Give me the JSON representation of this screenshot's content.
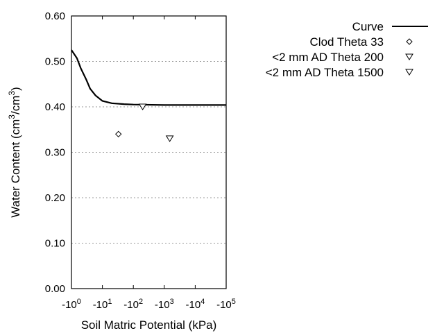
{
  "chart_data": {
    "type": "scatter",
    "title": "",
    "xlabel": "Soil Matric Potential (kPa)",
    "ylabel": "Water Content (cm3/cm3)",
    "xscale": "log (negative)",
    "xlim": [
      1,
      100000
    ],
    "ylim": [
      0.0,
      0.6
    ],
    "x_ticks": [
      "-10^0",
      "-10^1",
      "-10^2",
      "-10^3",
      "-10^4",
      "-10^5"
    ],
    "y_ticks": [
      "0.00",
      "0.10",
      "0.20",
      "0.30",
      "0.40",
      "0.50",
      "0.60"
    ],
    "grid": "horizontal dotted",
    "legend_position": "right, outside plot",
    "series": [
      {
        "name": "Curve",
        "type": "line",
        "x": [
          1,
          1.5,
          2,
          3,
          4,
          6,
          10,
          20,
          50,
          100,
          1000,
          100000
        ],
        "y": [
          0.525,
          0.507,
          0.485,
          0.46,
          0.44,
          0.425,
          0.413,
          0.408,
          0.406,
          0.405,
          0.404,
          0.404
        ]
      },
      {
        "name": "Clod Theta 33",
        "type": "scatter",
        "marker": "diamond",
        "x": [
          33
        ],
        "y": [
          0.34
        ]
      },
      {
        "name": "<2 mm AD Theta 200",
        "type": "scatter",
        "marker": "triangle-down",
        "x": [
          200
        ],
        "y": [
          0.4
        ]
      },
      {
        "name": "<2 mm AD Theta 1500",
        "type": "scatter",
        "marker": "triangle-down",
        "x": [
          1500
        ],
        "y": [
          0.33
        ]
      }
    ]
  },
  "legend": [
    "Curve",
    "Clod Theta 33",
    "<2 mm AD Theta 200",
    "<2 mm AD Theta 1500"
  ]
}
